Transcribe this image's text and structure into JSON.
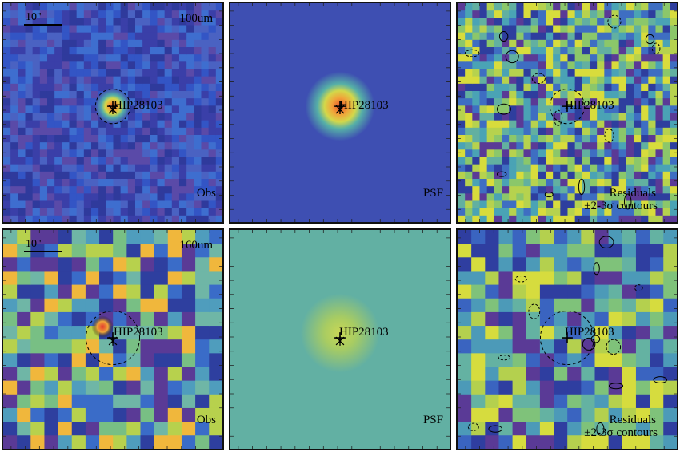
{
  "target_label": "HIP28103",
  "scale_label": "10\"",
  "rows": [
    {
      "band": "100um",
      "panels": [
        {
          "id": "obs",
          "caption": "Obs",
          "bg": "#3f4fb5",
          "noise": [
            "#3a3fa8",
            "#4a62c2",
            "#3355c5",
            "#5a4aa8",
            "#2f3a9c",
            "#3e6ecf"
          ],
          "seed": 3
        },
        {
          "id": "psf",
          "caption": "PSF",
          "bg": "#3e4fb2",
          "noise": [],
          "seed": 7
        },
        {
          "id": "res",
          "caption": "Residuals",
          "caption2": "±2-3σ contours",
          "bg": "#4c9ab8",
          "noise": [
            "#4aa3b5",
            "#8bc76a",
            "#3e6ec2",
            "#b6d24e",
            "#2e3e9e",
            "#62b0a0",
            "#d8dc3c",
            "#5a3a96"
          ],
          "seed": 11
        }
      ]
    },
    {
      "band": "160um",
      "panels": [
        {
          "id": "obs",
          "caption": "Obs",
          "bg": "#4f9dbd",
          "noise": [
            "#4f9dbd",
            "#78bf84",
            "#3a6cc8",
            "#b7d14d",
            "#f0b73c",
            "#2e3f9f",
            "#5a3a96",
            "#6fb6a6"
          ],
          "seed": 5
        },
        {
          "id": "psf",
          "caption": "PSF",
          "bg": "#62b0a3",
          "noise": [],
          "seed": 9
        },
        {
          "id": "res",
          "caption": "Residuals",
          "caption2": "±2-3σ contours",
          "bg": "#4c9ab8",
          "noise": [
            "#4c9ab8",
            "#7fc27a",
            "#3a64c0",
            "#b4d04e",
            "#2f3ea0",
            "#5a3a96",
            "#64b2a2",
            "#d6dc3e"
          ],
          "seed": 13
        }
      ]
    }
  ]
}
